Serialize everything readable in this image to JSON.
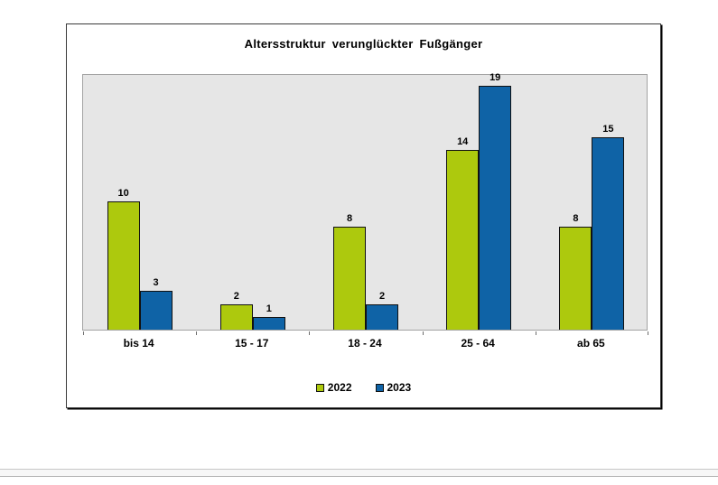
{
  "chart_data": {
    "type": "bar",
    "title": "Altersstruktur verunglückter Fußgänger",
    "categories": [
      "bis 14",
      "15 - 17",
      "18 - 24",
      "25 - 64",
      "ab 65"
    ],
    "series": [
      {
        "name": "2022",
        "color": "#adc90d",
        "values": [
          10,
          2,
          8,
          14,
          8
        ]
      },
      {
        "name": "2023",
        "color": "#0f63a6",
        "values": [
          3,
          1,
          2,
          19,
          15
        ]
      }
    ],
    "xlabel": "",
    "ylabel": "",
    "ylim": [
      0,
      20
    ],
    "grid": false,
    "value_labels": true,
    "legend_position": "bottom",
    "plot_background": "#e6e6e6",
    "bar_border_color": "#111111"
  }
}
